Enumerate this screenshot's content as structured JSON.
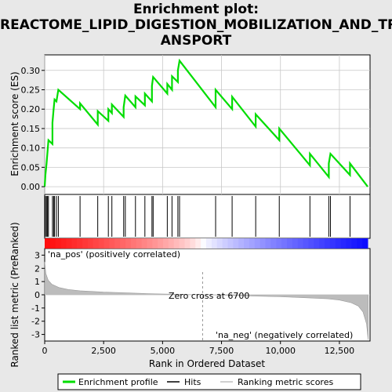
{
  "title_lines": [
    "Enrichment plot:",
    "REACTOME_LIPID_DIGESTION_MOBILIZATION_AND_TR",
    "ANSPORT"
  ],
  "chart_data": {
    "type": "line",
    "xlabel": "Rank in Ordered Dataset",
    "ylabel_top": "Enrichment score (ES)",
    "ylabel_bottom": "Ranked list metric (PreRanked)",
    "xlim": [
      0,
      13800
    ],
    "x_ticks": [
      0,
      2500,
      5000,
      7500,
      10000,
      12500
    ],
    "x_tick_labels": [
      "0",
      "2,500",
      "5,000",
      "7,500",
      "10,000",
      "12,500"
    ],
    "es_ylim": [
      -0.02,
      0.34
    ],
    "es_ticks": [
      0.0,
      0.05,
      0.1,
      0.15,
      0.2,
      0.25,
      0.3
    ],
    "es_tick_labels": [
      "0.00",
      "0.05",
      "0.10",
      "0.15",
      "0.20",
      "0.25",
      "0.30"
    ],
    "metric_ylim": [
      -3.5,
      3.5
    ],
    "metric_ticks": [
      -3,
      -2,
      -1,
      0,
      1,
      2,
      3
    ],
    "metric_tick_labels": [
      "-3",
      "-2",
      "-1",
      "0",
      "1",
      "2",
      "3"
    ],
    "zero_cross": 6700,
    "zero_cross_label": "Zero cross at 6700",
    "pos_label": "'na_pos' (positively correlated)",
    "neg_label": "'na_neg' (negatively correlated)",
    "hits": [
      30,
      80,
      120,
      160,
      330,
      380,
      420,
      500,
      580,
      1500,
      2250,
      2700,
      2850,
      3350,
      3420,
      3850,
      4250,
      4550,
      4600,
      5200,
      5400,
      5650,
      5720,
      7250,
      7950,
      8950,
      9950,
      11250,
      12050,
      12120,
      12950
    ],
    "es_series": [
      [
        0,
        0.0
      ],
      [
        30,
        0.03
      ],
      [
        80,
        0.06
      ],
      [
        120,
        0.09
      ],
      [
        160,
        0.12
      ],
      [
        330,
        0.11
      ],
      [
        330,
        0.165
      ],
      [
        380,
        0.2
      ],
      [
        420,
        0.225
      ],
      [
        500,
        0.22
      ],
      [
        580,
        0.25
      ],
      [
        1500,
        0.2
      ],
      [
        1500,
        0.215
      ],
      [
        2250,
        0.16
      ],
      [
        2250,
        0.195
      ],
      [
        2700,
        0.17
      ],
      [
        2700,
        0.2
      ],
      [
        2850,
        0.19
      ],
      [
        2850,
        0.212
      ],
      [
        3350,
        0.18
      ],
      [
        3350,
        0.205
      ],
      [
        3420,
        0.235
      ],
      [
        3850,
        0.205
      ],
      [
        3850,
        0.233
      ],
      [
        4250,
        0.21
      ],
      [
        4250,
        0.24
      ],
      [
        4550,
        0.22
      ],
      [
        4550,
        0.26
      ],
      [
        4600,
        0.283
      ],
      [
        5200,
        0.24
      ],
      [
        5200,
        0.265
      ],
      [
        5400,
        0.25
      ],
      [
        5400,
        0.285
      ],
      [
        5650,
        0.27
      ],
      [
        5650,
        0.3
      ],
      [
        5720,
        0.325
      ],
      [
        7250,
        0.205
      ],
      [
        7250,
        0.25
      ],
      [
        7950,
        0.2
      ],
      [
        7950,
        0.232
      ],
      [
        8950,
        0.155
      ],
      [
        8950,
        0.187
      ],
      [
        9950,
        0.12
      ],
      [
        9950,
        0.15
      ],
      [
        11250,
        0.055
      ],
      [
        11250,
        0.085
      ],
      [
        12050,
        0.025
      ],
      [
        12050,
        0.06
      ],
      [
        12120,
        0.085
      ],
      [
        12950,
        0.03
      ],
      [
        12950,
        0.06
      ],
      [
        13700,
        0.0
      ]
    ],
    "metric_curve": [
      [
        0,
        2.5
      ],
      [
        50,
        1.6
      ],
      [
        150,
        1.1
      ],
      [
        300,
        0.8
      ],
      [
        600,
        0.55
      ],
      [
        1000,
        0.4
      ],
      [
        1500,
        0.3
      ],
      [
        2500,
        0.2
      ],
      [
        3500,
        0.14
      ],
      [
        4500,
        0.08
      ],
      [
        5500,
        0.04
      ],
      [
        6700,
        0.0
      ],
      [
        8000,
        -0.05
      ],
      [
        9000,
        -0.1
      ],
      [
        10000,
        -0.15
      ],
      [
        11000,
        -0.22
      ],
      [
        12000,
        -0.3
      ],
      [
        12500,
        -0.4
      ],
      [
        13000,
        -0.6
      ],
      [
        13300,
        -0.85
      ],
      [
        13500,
        -1.3
      ],
      [
        13650,
        -2.2
      ],
      [
        13720,
        -3.4
      ]
    ],
    "legend": [
      {
        "label": "Enrichment profile",
        "color": "#00dd00"
      },
      {
        "label": "Hits",
        "color": "#000000"
      },
      {
        "label": "Ranking metric scores",
        "color": "#c0c0c0"
      }
    ],
    "colors": {
      "es_line": "#00dd00",
      "hit_line": "#000000",
      "metric_fill": "#bcbcbc",
      "grid": "#c8c8c8",
      "pos_text": "#cc0000",
      "neg_text": "#0000cc"
    }
  }
}
